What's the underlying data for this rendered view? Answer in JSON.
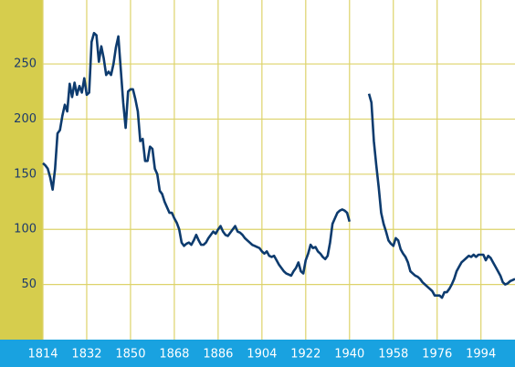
{
  "chart_data": {
    "type": "line",
    "x": [
      1814,
      1815,
      1816,
      1817,
      1818,
      1819,
      1820,
      1821,
      1822,
      1823,
      1824,
      1825,
      1826,
      1827,
      1828,
      1829,
      1830,
      1831,
      1832,
      1833,
      1834,
      1835,
      1836,
      1837,
      1838,
      1839,
      1840,
      1841,
      1842,
      1843,
      1844,
      1845,
      1846,
      1847,
      1848,
      1849,
      1850,
      1851,
      1852,
      1853,
      1854,
      1855,
      1856,
      1857,
      1858,
      1859,
      1860,
      1861,
      1862,
      1863,
      1864,
      1865,
      1866,
      1867,
      1868,
      1869,
      1870,
      1871,
      1872,
      1873,
      1874,
      1875,
      1876,
      1877,
      1878,
      1879,
      1880,
      1881,
      1882,
      1883,
      1884,
      1885,
      1886,
      1887,
      1888,
      1889,
      1890,
      1891,
      1892,
      1893,
      1894,
      1895,
      1896,
      1897,
      1898,
      1899,
      1900,
      1901,
      1902,
      1903,
      1904,
      1905,
      1906,
      1907,
      1908,
      1909,
      1910,
      1911,
      1912,
      1913,
      1914,
      1915,
      1916,
      1917,
      1918,
      1919,
      1920,
      1921,
      1922,
      1923,
      1924,
      1925,
      1926,
      1927,
      1928,
      1929,
      1930,
      1931,
      1932,
      1933,
      1934,
      1935,
      1936,
      1937,
      1938,
      1939,
      1940,
      1941,
      1942,
      1943,
      1944,
      1945,
      1946,
      1947,
      1948,
      1949,
      1950,
      1951,
      1952,
      1953,
      1954,
      1955,
      1956,
      1957,
      1958,
      1959,
      1960,
      1961,
      1962,
      1963,
      1964,
      1965,
      1966,
      1967,
      1968,
      1969,
      1970,
      1971,
      1972,
      1973,
      1974,
      1975,
      1976,
      1977,
      1978,
      1979,
      1980,
      1981,
      1982,
      1983,
      1984,
      1985,
      1986,
      1987,
      1988,
      1989,
      1990,
      1991,
      1992,
      1993,
      1994,
      1995,
      1996,
      1997,
      1998,
      1999,
      2000,
      2001,
      2002,
      2003,
      2004,
      2005,
      2006,
      2007,
      2008
    ],
    "series": [
      {
        "color": "#0d3b6e",
        "values": [
          160,
          158,
          155,
          147,
          136,
          155,
          187,
          190,
          203,
          213,
          207,
          232,
          220,
          233,
          222,
          230,
          224,
          237,
          222,
          224,
          270,
          278,
          276,
          252,
          266,
          255,
          240,
          243,
          240,
          250,
          265,
          275,
          245,
          215,
          192,
          225,
          227,
          227,
          218,
          207,
          180,
          182,
          162,
          162,
          175,
          173,
          155,
          150,
          135,
          132,
          125,
          120,
          115,
          115,
          110,
          106,
          100,
          88,
          85,
          87,
          88,
          86,
          90,
          95,
          90,
          86,
          86,
          88,
          92,
          95,
          98,
          96,
          100,
          103,
          98,
          95,
          94,
          97,
          100,
          103,
          98,
          97,
          95,
          92,
          90,
          88,
          86,
          85,
          84,
          83,
          80,
          78,
          80,
          76,
          75,
          76,
          72,
          68,
          65,
          62,
          60,
          59,
          58,
          62,
          65,
          70,
          62,
          60,
          72,
          78,
          86,
          83,
          84,
          80,
          78,
          75,
          73,
          76,
          88,
          105,
          110,
          115,
          117,
          118,
          117,
          115,
          107,
          null,
          null,
          null,
          null,
          null,
          null,
          null,
          223,
          215,
          180,
          158,
          138,
          115,
          105,
          98,
          90,
          87,
          85,
          92,
          90,
          82,
          78,
          75,
          70,
          62,
          60,
          58,
          57,
          55,
          52,
          50,
          48,
          46,
          44,
          40,
          40,
          40,
          38,
          43,
          43,
          46,
          50,
          55,
          62,
          66,
          70,
          72,
          74,
          76,
          75,
          77,
          75,
          77,
          77,
          77,
          72,
          76,
          74,
          70,
          66,
          62,
          58,
          52,
          50,
          51,
          53,
          54,
          55
        ]
      }
    ],
    "xlim": [
      1814,
      2008
    ],
    "xticks": [
      1814,
      1832,
      1850,
      1868,
      1886,
      1904,
      1922,
      1940,
      1958,
      1976,
      1994
    ],
    "ylim": [
      0,
      308
    ],
    "yticks": [
      50,
      100,
      150,
      200,
      250
    ],
    "grid": true
  }
}
